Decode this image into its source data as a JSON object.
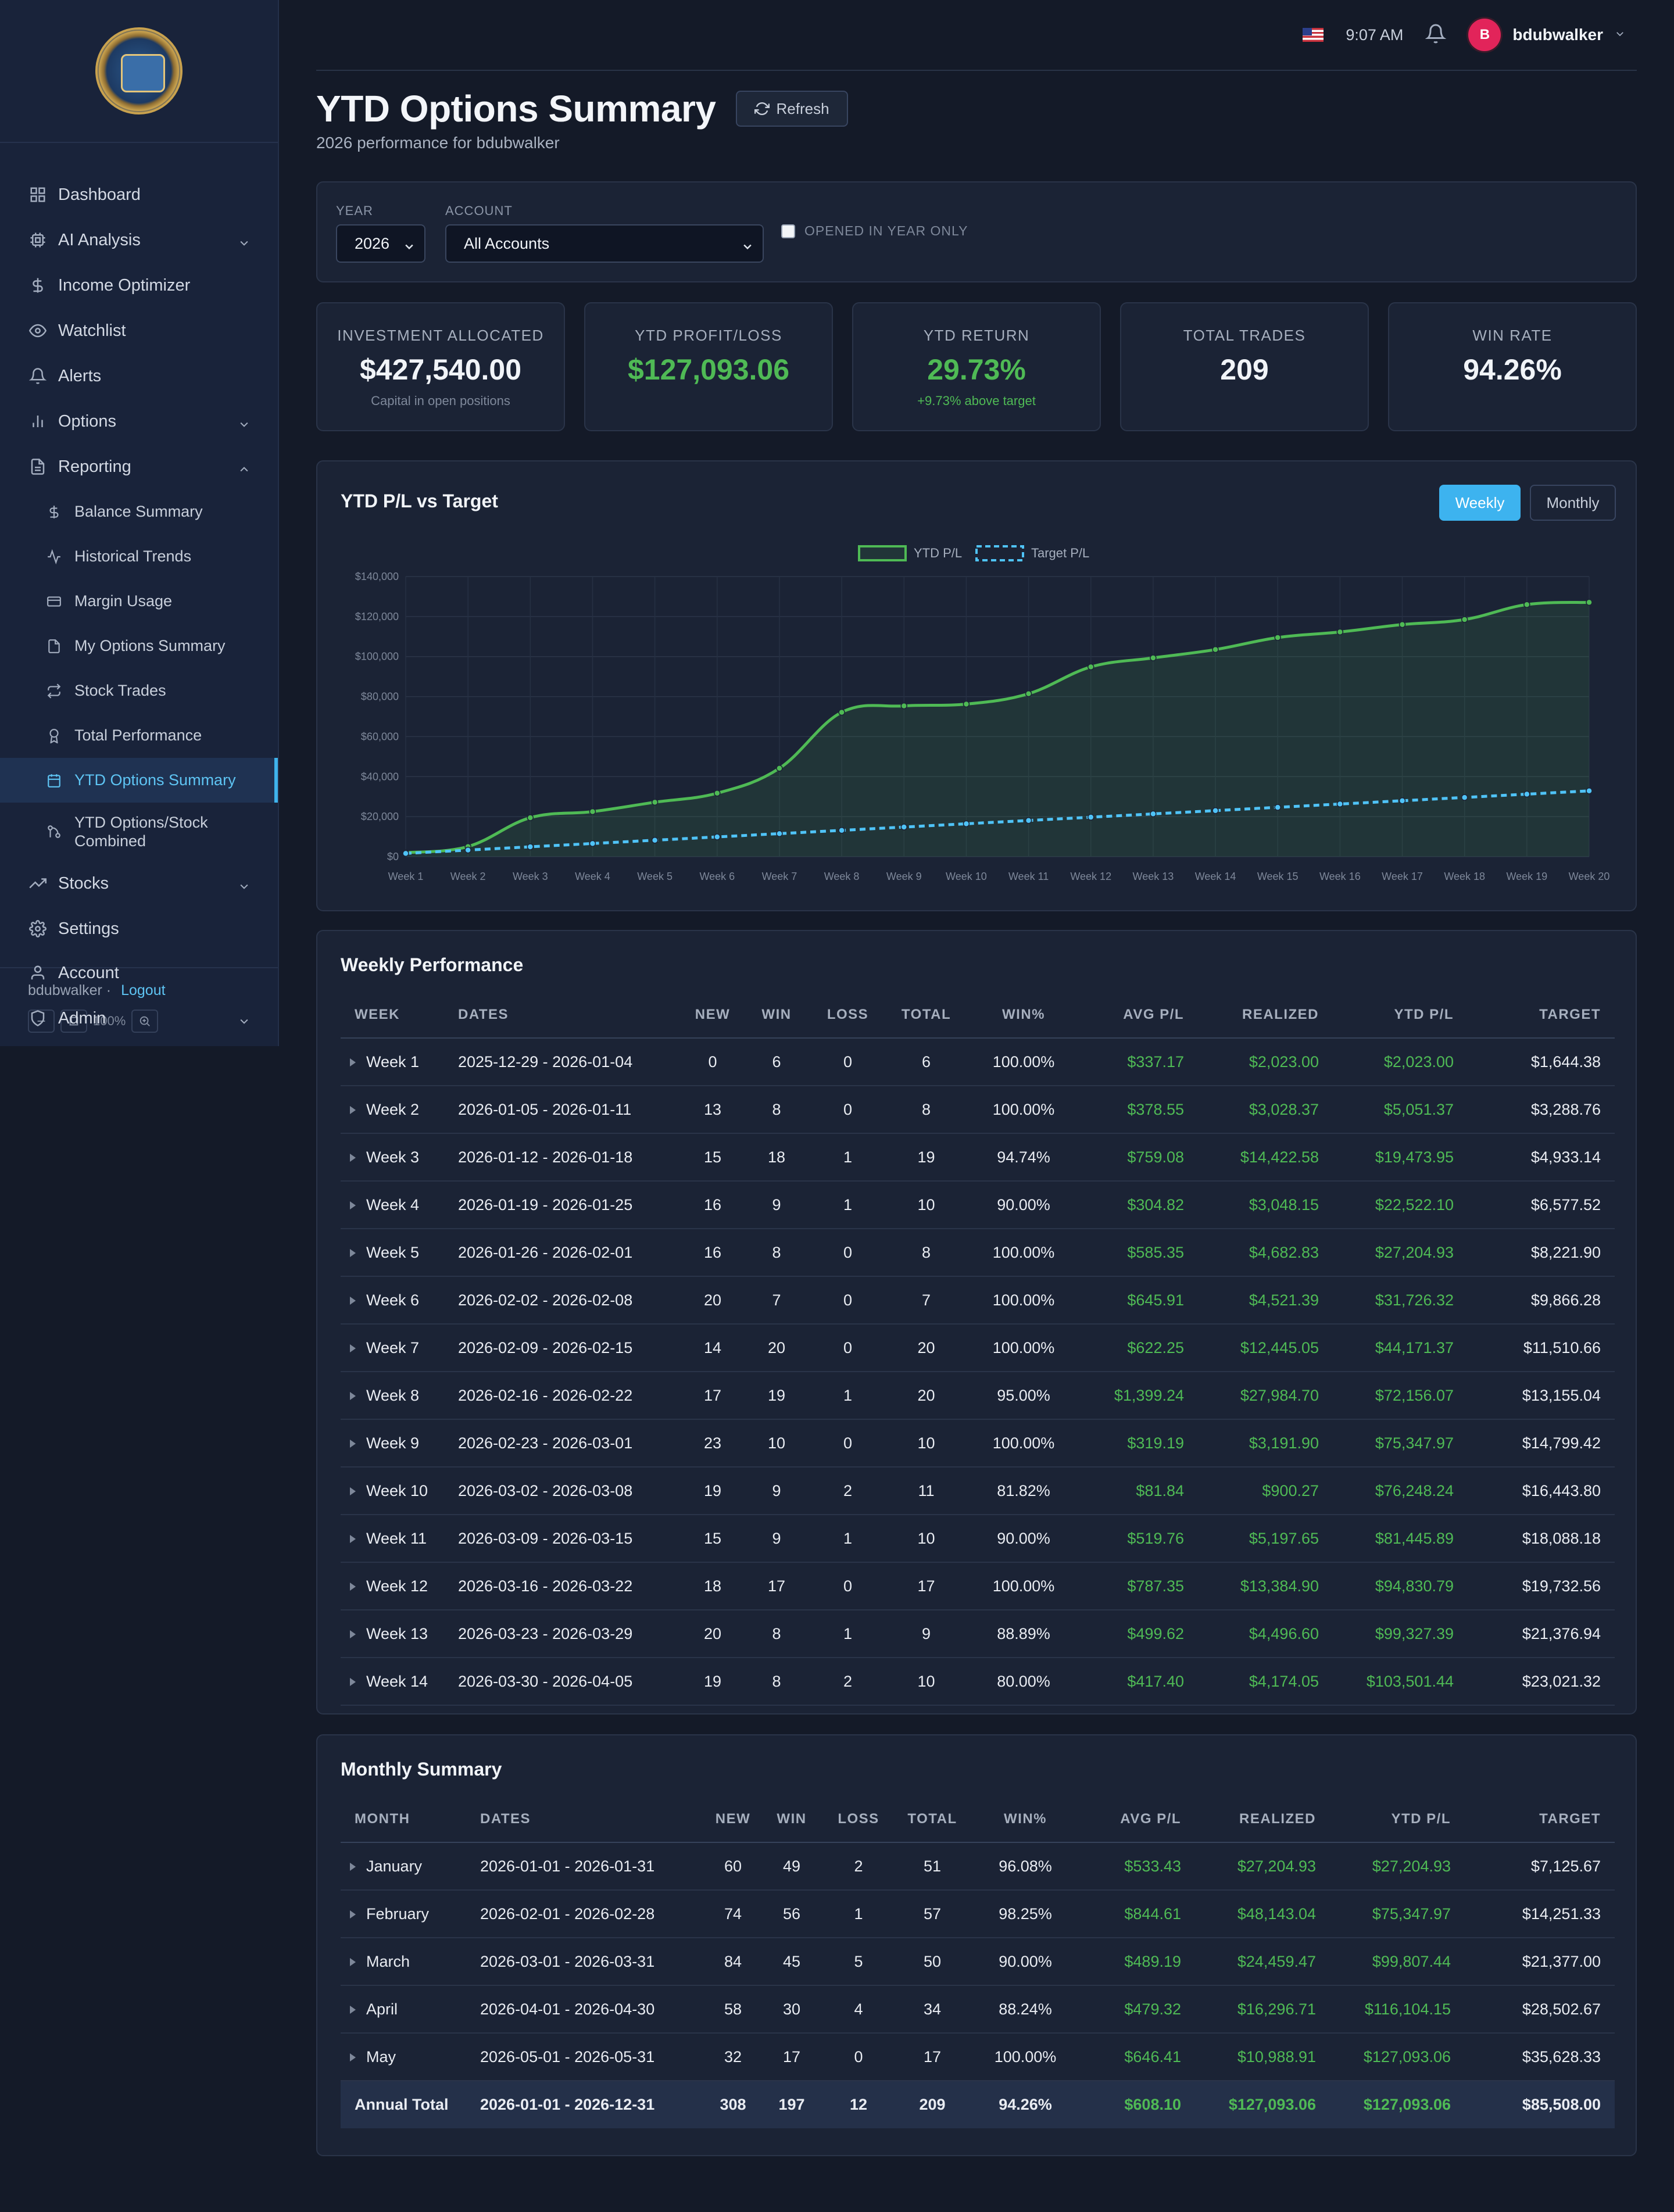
{
  "sidebar": {
    "items": [
      {
        "label": "Dashboard",
        "icon": "grid-icon"
      },
      {
        "label": "AI Analysis",
        "icon": "cpu-icon"
      },
      {
        "label": "Income Optimizer",
        "icon": "dollar-icon"
      },
      {
        "label": "Watchlist",
        "icon": "eye-icon"
      },
      {
        "label": "Alerts",
        "icon": "bell-icon"
      },
      {
        "label": "Options",
        "icon": "bar-chart-icon"
      },
      {
        "label": "Reporting",
        "icon": "file-icon"
      }
    ],
    "reporting_sub": [
      {
        "label": "Balance Summary",
        "icon": "dollar-icon"
      },
      {
        "label": "Historical Trends",
        "icon": "activity-icon"
      },
      {
        "label": "Margin Usage",
        "icon": "credit-card-icon"
      },
      {
        "label": "My Options Summary",
        "icon": "file-icon"
      },
      {
        "label": "Stock Trades",
        "icon": "repeat-icon"
      },
      {
        "label": "Total Performance",
        "icon": "award-icon"
      },
      {
        "label": "YTD Options Summary",
        "icon": "calendar-icon"
      },
      {
        "label": "YTD Options/Stock",
        "label2": "Combined",
        "icon": "git-branch-icon"
      }
    ],
    "bottom_items": [
      {
        "label": "Stocks",
        "icon": "trending-up-icon"
      },
      {
        "label": "Settings",
        "icon": "gear-icon"
      },
      {
        "label": "Account",
        "icon": "user-icon"
      },
      {
        "label": "Admin",
        "icon": "shield-icon"
      }
    ],
    "footer_user": "bdubwalker ·",
    "logout": "Logout",
    "zoom": "100%"
  },
  "topbar": {
    "time": "9:07 AM",
    "avatar_letter": "B",
    "username": "bdubwalker"
  },
  "page": {
    "title": "YTD Options Summary",
    "refresh": "Refresh",
    "subtitle": "2026 performance for bdubwalker"
  },
  "filters": {
    "year_label": "YEAR",
    "year_value": "2026",
    "account_label": "ACCOUNT",
    "account_value": "All Accounts",
    "opened_label": "OPENED IN YEAR ONLY",
    "opened_checked": false
  },
  "kpis": [
    {
      "label": "INVESTMENT ALLOCATED",
      "value": "$427,540.00",
      "sub": "Capital in open positions"
    },
    {
      "label": "YTD PROFIT/LOSS",
      "value": "$127,093.06",
      "sub": ""
    },
    {
      "label": "YTD RETURN",
      "value": "29.73%",
      "sub": "+9.73% above target"
    },
    {
      "label": "TOTAL TRADES",
      "value": "209",
      "sub": ""
    },
    {
      "label": "WIN RATE",
      "value": "94.26%",
      "sub": ""
    }
  ],
  "chart_title": "YTD P/L vs Target",
  "chart_toggle": {
    "weekly": "Weekly",
    "monthly": "Monthly"
  },
  "chart_data": {
    "type": "line",
    "title": "",
    "categories": [
      "Week 1",
      "Week 2",
      "Week 3",
      "Week 4",
      "Week 5",
      "Week 6",
      "Week 7",
      "Week 8",
      "Week 9",
      "Week 10",
      "Week 11",
      "Week 12",
      "Week 13",
      "Week 14",
      "Week 15",
      "Week 16",
      "Week 17",
      "Week 18",
      "Week 19",
      "Week 20"
    ],
    "series": [
      {
        "name": "YTD P/L",
        "color": "#4fba55",
        "style": "solid",
        "fill": true,
        "values": [
          2023,
          5051,
          19474,
          22522,
          27205,
          31726,
          44171,
          72156,
          75348,
          76248,
          81446,
          94831,
          99327,
          103501,
          109500,
          112300,
          116000,
          118500,
          126000,
          127093
        ]
      },
      {
        "name": "Target P/L",
        "color": "#4fc3f7",
        "style": "dashed",
        "fill": false,
        "values": [
          1644,
          3289,
          4933,
          6578,
          8222,
          9866,
          11511,
          13155,
          14799,
          16444,
          18088,
          19733,
          21377,
          23021,
          24666,
          26310,
          27955,
          29599,
          31243,
          32888
        ]
      }
    ],
    "y_ticks": [
      "$0",
      "$20,000",
      "$40,000",
      "$60,000",
      "$80,000",
      "$100,000",
      "$120,000",
      "$140,000"
    ],
    "ylim": [
      0,
      140000
    ],
    "grid": true,
    "legend": "top-center"
  },
  "weekly": {
    "title": "Weekly Performance",
    "headers": [
      "WEEK",
      "DATES",
      "NEW",
      "WIN",
      "LOSS",
      "TOTAL",
      "WIN%",
      "AVG P/L",
      "REALIZED",
      "YTD P/L",
      "TARGET"
    ],
    "rows": [
      [
        "Week 1",
        "2025-12-29 - 2026-01-04",
        "0",
        "6",
        "0",
        "6",
        "100.00%",
        "$337.17",
        "$2,023.00",
        "$2,023.00",
        "$1,644.38"
      ],
      [
        "Week 2",
        "2026-01-05 - 2026-01-11",
        "13",
        "8",
        "0",
        "8",
        "100.00%",
        "$378.55",
        "$3,028.37",
        "$5,051.37",
        "$3,288.76"
      ],
      [
        "Week 3",
        "2026-01-12 - 2026-01-18",
        "15",
        "18",
        "1",
        "19",
        "94.74%",
        "$759.08",
        "$14,422.58",
        "$19,473.95",
        "$4,933.14"
      ],
      [
        "Week 4",
        "2026-01-19 - 2026-01-25",
        "16",
        "9",
        "1",
        "10",
        "90.00%",
        "$304.82",
        "$3,048.15",
        "$22,522.10",
        "$6,577.52"
      ],
      [
        "Week 5",
        "2026-01-26 - 2026-02-01",
        "16",
        "8",
        "0",
        "8",
        "100.00%",
        "$585.35",
        "$4,682.83",
        "$27,204.93",
        "$8,221.90"
      ],
      [
        "Week 6",
        "2026-02-02 - 2026-02-08",
        "20",
        "7",
        "0",
        "7",
        "100.00%",
        "$645.91",
        "$4,521.39",
        "$31,726.32",
        "$9,866.28"
      ],
      [
        "Week 7",
        "2026-02-09 - 2026-02-15",
        "14",
        "20",
        "0",
        "20",
        "100.00%",
        "$622.25",
        "$12,445.05",
        "$44,171.37",
        "$11,510.66"
      ],
      [
        "Week 8",
        "2026-02-16 - 2026-02-22",
        "17",
        "19",
        "1",
        "20",
        "95.00%",
        "$1,399.24",
        "$27,984.70",
        "$72,156.07",
        "$13,155.04"
      ],
      [
        "Week 9",
        "2026-02-23 - 2026-03-01",
        "23",
        "10",
        "0",
        "10",
        "100.00%",
        "$319.19",
        "$3,191.90",
        "$75,347.97",
        "$14,799.42"
      ],
      [
        "Week 10",
        "2026-03-02 - 2026-03-08",
        "19",
        "9",
        "2",
        "11",
        "81.82%",
        "$81.84",
        "$900.27",
        "$76,248.24",
        "$16,443.80"
      ],
      [
        "Week 11",
        "2026-03-09 - 2026-03-15",
        "15",
        "9",
        "1",
        "10",
        "90.00%",
        "$519.76",
        "$5,197.65",
        "$81,445.89",
        "$18,088.18"
      ],
      [
        "Week 12",
        "2026-03-16 - 2026-03-22",
        "18",
        "17",
        "0",
        "17",
        "100.00%",
        "$787.35",
        "$13,384.90",
        "$94,830.79",
        "$19,732.56"
      ],
      [
        "Week 13",
        "2026-03-23 - 2026-03-29",
        "20",
        "8",
        "1",
        "9",
        "88.89%",
        "$499.62",
        "$4,496.60",
        "$99,327.39",
        "$21,376.94"
      ],
      [
        "Week 14",
        "2026-03-30 - 2026-04-05",
        "19",
        "8",
        "2",
        "10",
        "80.00%",
        "$417.40",
        "$4,174.05",
        "$103,501.44",
        "$23,021.32"
      ]
    ]
  },
  "monthly": {
    "title": "Monthly Summary",
    "headers": [
      "MONTH",
      "DATES",
      "NEW",
      "WIN",
      "LOSS",
      "TOTAL",
      "WIN%",
      "AVG P/L",
      "REALIZED",
      "YTD P/L",
      "TARGET"
    ],
    "rows": [
      [
        "January",
        "2026-01-01 - 2026-01-31",
        "60",
        "49",
        "2",
        "51",
        "96.08%",
        "$533.43",
        "$27,204.93",
        "$27,204.93",
        "$7,125.67"
      ],
      [
        "February",
        "2026-02-01 - 2026-02-28",
        "74",
        "56",
        "1",
        "57",
        "98.25%",
        "$844.61",
        "$48,143.04",
        "$75,347.97",
        "$14,251.33"
      ],
      [
        "March",
        "2026-03-01 - 2026-03-31",
        "84",
        "45",
        "5",
        "50",
        "90.00%",
        "$489.19",
        "$24,459.47",
        "$99,807.44",
        "$21,377.00"
      ],
      [
        "April",
        "2026-04-01 - 2026-04-30",
        "58",
        "30",
        "4",
        "34",
        "88.24%",
        "$479.32",
        "$16,296.71",
        "$116,104.15",
        "$28,502.67"
      ],
      [
        "May",
        "2026-05-01 - 2026-05-31",
        "32",
        "17",
        "0",
        "17",
        "100.00%",
        "$646.41",
        "$10,988.91",
        "$127,093.06",
        "$35,628.33"
      ]
    ],
    "total": [
      "Annual Total",
      "2026-01-01 - 2026-12-31",
      "308",
      "197",
      "12",
      "209",
      "94.26%",
      "$608.10",
      "$127,093.06",
      "$127,093.06",
      "$85,508.00"
    ]
  },
  "colors": {
    "accent": "#3db3ef",
    "positive": "#4fba55",
    "avatar": "#e2245a"
  }
}
